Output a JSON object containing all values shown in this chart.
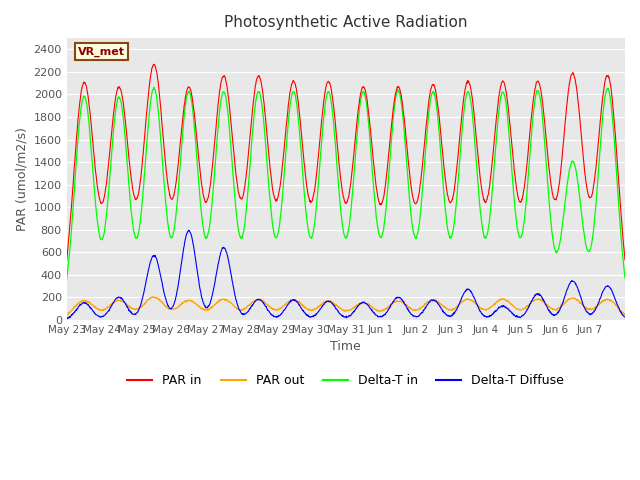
{
  "title": "Photosynthetic Active Radiation",
  "ylabel": "PAR (umol/m2/s)",
  "xlabel": "Time",
  "ylim": [
    0,
    2500
  ],
  "axes_bg": "#e8e8e8",
  "legend_label": "VR_met",
  "legend_entries": [
    "PAR in",
    "PAR out",
    "Delta-T in",
    "Delta-T Diffuse"
  ],
  "xtick_labels": [
    "May 23",
    "May 24",
    "May 25",
    "May 26",
    "May 27",
    "May 28",
    "May 29",
    "May 30",
    "May 31",
    "Jun 1",
    "Jun 2",
    "Jun 3",
    "Jun 4",
    "Jun 5",
    "Jun 6",
    "Jun 7"
  ],
  "n_days": 16,
  "par_in_peaks": [
    2100,
    2050,
    2250,
    2050,
    2150,
    2150,
    2100,
    2100,
    2050,
    2050,
    2070,
    2100,
    2100,
    2100,
    2170,
    2160
  ],
  "par_out_peaks": [
    170,
    170,
    200,
    170,
    180,
    180,
    175,
    165,
    150,
    165,
    175,
    180,
    180,
    180,
    190,
    180
  ],
  "delta_t_peaks": [
    1980,
    1970,
    2050,
    2020,
    2020,
    2020,
    2020,
    2020,
    2020,
    2030,
    2020,
    2020,
    2020,
    2030,
    1400,
    2050
  ],
  "delta_diffuse_peaks": [
    150,
    200,
    570,
    790,
    640,
    180,
    175,
    165,
    155,
    200,
    175,
    270,
    120,
    230,
    345,
    300
  ]
}
